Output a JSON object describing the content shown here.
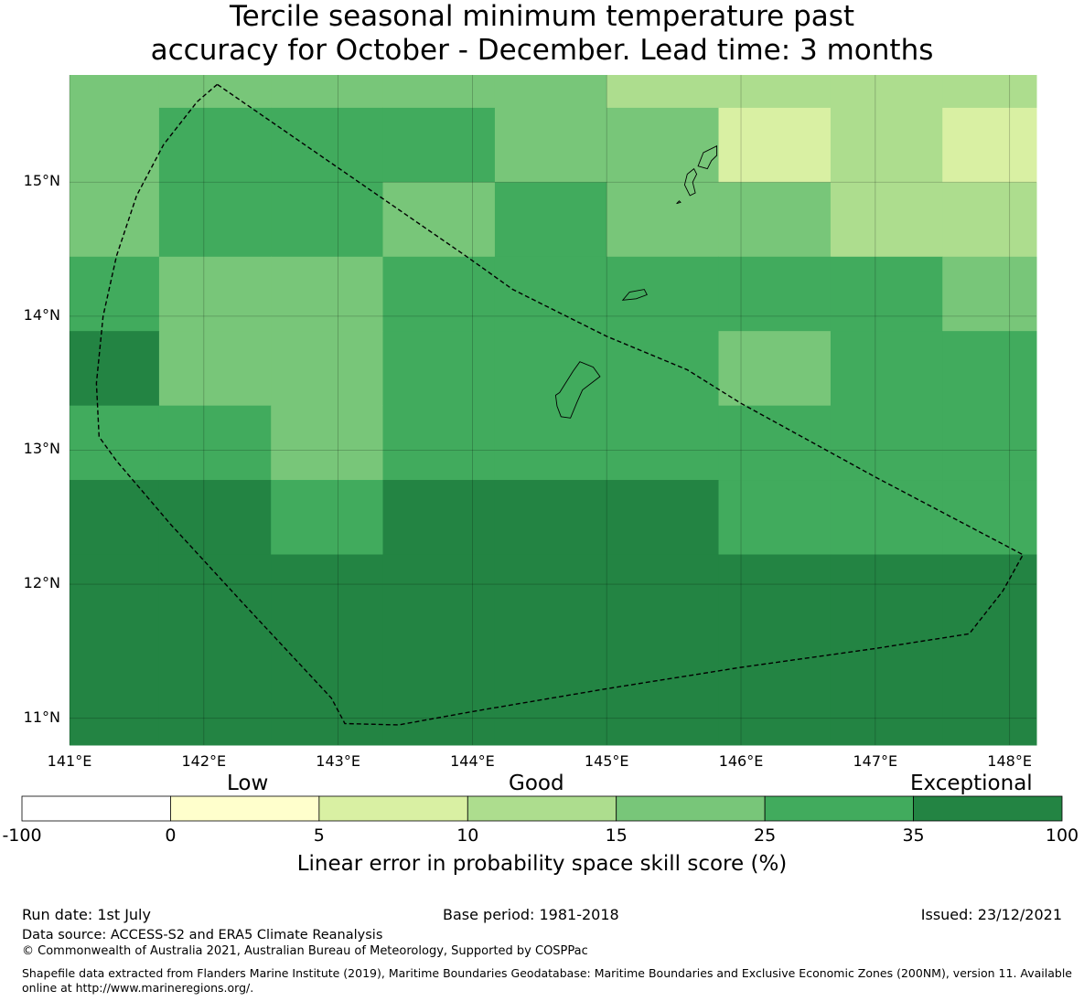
{
  "title_line1": "Tercile seasonal minimum temperature past",
  "title_line2": "accuracy for October - December. Lead time: 3 months",
  "lat_labels": [
    "15°N",
    "14°N",
    "13°N",
    "12°N",
    "11°N"
  ],
  "lon_labels": [
    "141°E",
    "142°E",
    "143°E",
    "144°E",
    "145°E",
    "146°E",
    "147°E",
    "148°E"
  ],
  "colorbar": {
    "category_labels": [
      "Low",
      "Good",
      "Exceptional"
    ],
    "ticks": [
      "-100",
      "0",
      "5",
      "10",
      "15",
      "25",
      "35",
      "100"
    ],
    "bin_colors": [
      "#ffffff",
      "#ffffcc",
      "#d9f0a3",
      "#addd8e",
      "#78c679",
      "#41ab5d",
      "#238443"
    ],
    "title": "Linear error in probability space skill score (%)"
  },
  "footer": {
    "run_date": "Run date: 1st July",
    "base_period": "Base period: 1981-2018",
    "issued": "Issued: 23/12/2021",
    "data_source": "Data source: ACCESS-S2 and ERA5 Climate Reanalysis",
    "copyright": "© Commonwealth of Australia 2021, Australian Bureau of Meteorology, Supported by COSPPac",
    "shapefile_note": "Shapefile data extracted from Flanders Marine Institute (2019), Maritime Boundaries Geodatabase: Maritime Boundaries and Exclusive Economic Zones (200NM), version 11. Available online at http://www.marineregions.org/."
  },
  "chart_data": {
    "type": "heatmap",
    "extent": {
      "lon_min": 141.0,
      "lon_max": 148.2,
      "lat_min": 10.8,
      "lat_max": 15.8
    },
    "col_edges": [
      141.0,
      141.667,
      142.5,
      143.333,
      144.167,
      145.0,
      145.833,
      146.667,
      147.5,
      148.2
    ],
    "row_edges": [
      15.8,
      15.555,
      15.0,
      14.444,
      13.889,
      13.333,
      12.778,
      12.222,
      10.8
    ],
    "cell_colors": [
      [
        "#78c679",
        "#78c679",
        "#78c679",
        "#78c679",
        "#78c679",
        "#addd8e",
        "#addd8e",
        "#addd8e",
        "#addd8e"
      ],
      [
        "#78c679",
        "#41ab5d",
        "#41ab5d",
        "#41ab5d",
        "#78c679",
        "#78c679",
        "#d9f0a3",
        "#addd8e",
        "#d9f0a3"
      ],
      [
        "#78c679",
        "#41ab5d",
        "#41ab5d",
        "#78c679",
        "#41ab5d",
        "#78c679",
        "#78c679",
        "#addd8e",
        "#addd8e"
      ],
      [
        "#41ab5d",
        "#78c679",
        "#78c679",
        "#41ab5d",
        "#41ab5d",
        "#41ab5d",
        "#41ab5d",
        "#41ab5d",
        "#78c679"
      ],
      [
        "#238443",
        "#78c679",
        "#78c679",
        "#41ab5d",
        "#41ab5d",
        "#41ab5d",
        "#78c679",
        "#41ab5d",
        "#41ab5d"
      ],
      [
        "#41ab5d",
        "#41ab5d",
        "#78c679",
        "#41ab5d",
        "#41ab5d",
        "#41ab5d",
        "#41ab5d",
        "#41ab5d",
        "#41ab5d"
      ],
      [
        "#238443",
        "#238443",
        "#41ab5d",
        "#238443",
        "#238443",
        "#238443",
        "#41ab5d",
        "#41ab5d",
        "#41ab5d"
      ],
      [
        "#238443",
        "#238443",
        "#238443",
        "#238443",
        "#238443",
        "#238443",
        "#238443",
        "#238443",
        "#238443"
      ]
    ],
    "eez_boundary": [
      [
        142.1,
        15.73
      ],
      [
        141.95,
        15.6
      ],
      [
        141.7,
        15.28
      ],
      [
        141.5,
        14.9
      ],
      [
        141.35,
        14.45
      ],
      [
        141.25,
        14.0
      ],
      [
        141.2,
        13.5
      ],
      [
        141.22,
        13.1
      ],
      [
        141.35,
        12.92
      ],
      [
        141.75,
        12.45
      ],
      [
        142.3,
        11.85
      ],
      [
        142.95,
        11.15
      ],
      [
        143.05,
        10.96
      ],
      [
        143.45,
        10.95
      ],
      [
        144.0,
        11.05
      ],
      [
        145.0,
        11.22
      ],
      [
        146.0,
        11.38
      ],
      [
        147.0,
        11.52
      ],
      [
        147.7,
        11.63
      ],
      [
        147.95,
        11.95
      ],
      [
        148.1,
        12.22
      ],
      [
        147.0,
        12.8
      ],
      [
        146.0,
        13.35
      ],
      [
        145.6,
        13.6
      ],
      [
        145.0,
        13.85
      ],
      [
        144.3,
        14.2
      ],
      [
        143.95,
        14.45
      ],
      [
        142.1,
        15.73
      ]
    ],
    "islands": [
      [
        [
          145.82,
          15.27
        ],
        [
          145.72,
          15.22
        ],
        [
          145.68,
          15.12
        ],
        [
          145.75,
          15.1
        ],
        [
          145.78,
          15.16
        ],
        [
          145.82,
          15.2
        ]
      ],
      [
        [
          145.65,
          15.1
        ],
        [
          145.6,
          15.06
        ],
        [
          145.58,
          14.98
        ],
        [
          145.62,
          14.9
        ],
        [
          145.66,
          14.92
        ],
        [
          145.64,
          15.0
        ],
        [
          145.67,
          15.06
        ]
      ],
      [
        [
          145.55,
          14.85
        ],
        [
          145.52,
          14.84
        ],
        [
          145.54,
          14.86
        ]
      ],
      [
        [
          145.12,
          14.12
        ],
        [
          145.17,
          14.18
        ],
        [
          145.28,
          14.2
        ],
        [
          145.3,
          14.16
        ],
        [
          145.22,
          14.13
        ]
      ],
      [
        [
          144.65,
          13.43
        ],
        [
          144.75,
          13.59
        ],
        [
          144.8,
          13.66
        ],
        [
          144.9,
          13.62
        ],
        [
          144.95,
          13.55
        ],
        [
          144.82,
          13.45
        ],
        [
          144.78,
          13.36
        ],
        [
          144.73,
          13.24
        ],
        [
          144.66,
          13.25
        ],
        [
          144.63,
          13.33
        ],
        [
          144.62,
          13.41
        ]
      ]
    ]
  }
}
